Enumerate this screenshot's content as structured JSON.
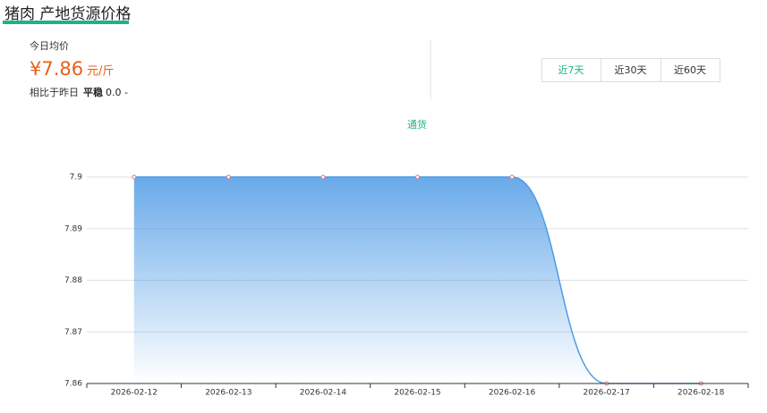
{
  "header": {
    "title": "猪肉 产地货源价格"
  },
  "summary": {
    "label": "今日均价",
    "price": "¥7.86",
    "unit": "元/斤",
    "compare_label": "相比于昨日",
    "trend": "平稳",
    "change": "0.0",
    "change_sign": "-"
  },
  "tabs": [
    "近7天",
    "近30天",
    "近60天"
  ],
  "chart_data": {
    "type": "line",
    "categories": [
      "2026-02-12",
      "2026-02-13",
      "2026-02-14",
      "2026-02-15",
      "2026-02-16",
      "2026-02-17",
      "2026-02-18"
    ],
    "series": [
      {
        "name": "通货",
        "color": "#4e9be6",
        "values": [
          7.9,
          7.9,
          7.9,
          7.9,
          7.9,
          7.86,
          7.86
        ]
      }
    ],
    "ylim": [
      7.86,
      7.9
    ],
    "yticks": [
      7.86,
      7.87,
      7.88,
      7.89,
      7.9
    ],
    "grid": true,
    "smooth": true,
    "area": true
  }
}
